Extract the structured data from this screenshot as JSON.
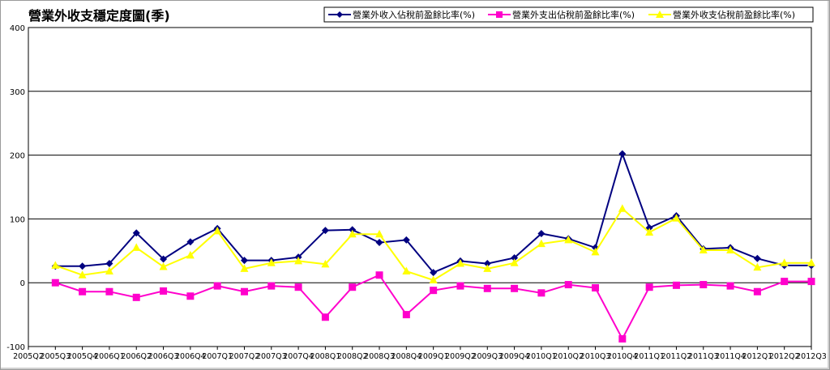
{
  "chart_data": {
    "type": "line",
    "title": "營業外收支穩定度圖(季)",
    "xlabel": "",
    "ylabel": "",
    "ylim": [
      -100,
      400
    ],
    "yticks": [
      -100,
      0,
      100,
      200,
      300,
      400
    ],
    "grid": true,
    "legend_position": "top-right",
    "categories": [
      "2005Q2",
      "2005Q3",
      "2005Q4",
      "2006Q1",
      "2006Q2",
      "2006Q3",
      "2006Q4",
      "2007Q1",
      "2007Q2",
      "2007Q3",
      "2007Q4",
      "2008Q1",
      "2008Q2",
      "2008Q3",
      "2008Q4",
      "2009Q1",
      "2009Q2",
      "2009Q3",
      "2009Q4",
      "2010Q1",
      "2010Q2",
      "2010Q3",
      "2010Q4",
      "2011Q1",
      "2011Q2",
      "2011Q3",
      "2011Q4",
      "2012Q1",
      "2012Q2",
      "2012Q3"
    ],
    "series": [
      {
        "name": "營業外收入佔稅前盈餘比率(%)",
        "color": "#000080",
        "marker": "diamond",
        "values": [
          null,
          26,
          26,
          30,
          78,
          37,
          64,
          85,
          35,
          35,
          40,
          82,
          83,
          63,
          67,
          16,
          34,
          30,
          39,
          77,
          69,
          55,
          202,
          86,
          105,
          53,
          55,
          38,
          27,
          27
        ]
      },
      {
        "name": "營業外支出佔稅前盈餘比率(%)",
        "color": "#ff00cc",
        "marker": "square",
        "values": [
          null,
          0,
          -14,
          -14,
          -23,
          -13,
          -21,
          -5,
          -14,
          -5,
          -7,
          -54,
          -7,
          12,
          -50,
          -12,
          -5,
          -9,
          -9,
          -16,
          -3,
          -8,
          -88,
          -7,
          -4,
          -3,
          -5,
          -14,
          2,
          2
        ]
      },
      {
        "name": "營業外收支佔稅前盈餘比率(%)",
        "color": "#ffff00",
        "marker": "triangle",
        "values": [
          null,
          27,
          12,
          18,
          55,
          25,
          43,
          81,
          22,
          31,
          34,
          29,
          76,
          76,
          18,
          4,
          30,
          22,
          31,
          61,
          67,
          48,
          116,
          79,
          101,
          51,
          51,
          24,
          31,
          31
        ]
      }
    ]
  }
}
